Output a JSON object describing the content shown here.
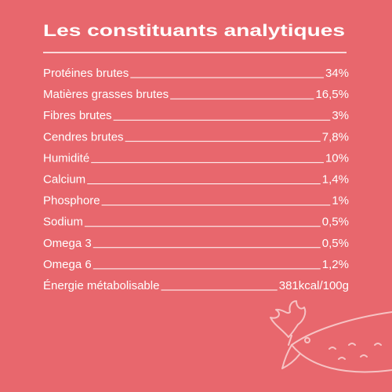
{
  "title": "Les constituants analytiques",
  "rows": [
    {
      "label": "Protéines brutes",
      "value": "34%"
    },
    {
      "label": "Matières grasses brutes",
      "value": "16,5%"
    },
    {
      "label": "Fibres brutes",
      "value": "3%"
    },
    {
      "label": "Cendres brutes",
      "value": "7,8%"
    },
    {
      "label": "Humidité",
      "value": "10%"
    },
    {
      "label": "Calcium",
      "value": "1,4%"
    },
    {
      "label": "Phosphore",
      "value": "1%"
    },
    {
      "label": "Sodium",
      "value": "0,5%"
    },
    {
      "label": "Omega  3",
      "value": "0,5%"
    },
    {
      "label": "Omega  6",
      "value": "1,2%"
    },
    {
      "label": "Énergie métabolisable",
      "value": "381kcal/100g"
    }
  ]
}
